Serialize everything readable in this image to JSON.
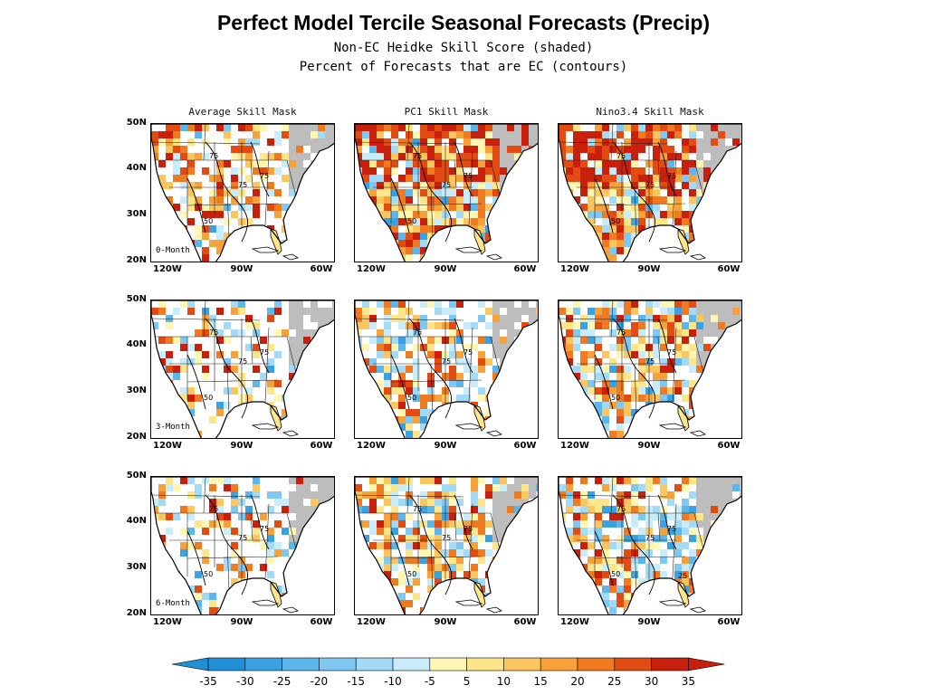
{
  "title": "Perfect Model Tercile Seasonal Forecasts (Precip)",
  "subtitle1": "Non-EC Heidke Skill Score (shaded)",
  "subtitle2": "Percent of Forecasts that are EC (contours)",
  "columns": [
    "Average Skill Mask",
    "PC1 Skill Mask",
    "Nino3.4 Skill Mask"
  ],
  "rows": [
    "0-Month",
    "3-Month",
    "6-Month"
  ],
  "lat_labels": [
    "50N",
    "40N",
    "30N",
    "20N"
  ],
  "lon_labels": [
    "120W",
    "90W",
    "60W"
  ],
  "contour_labels": [
    "75",
    "50",
    "25"
  ],
  "colorbar": {
    "labels": [
      "-35",
      "-30",
      "-25",
      "-20",
      "-15",
      "-10",
      "-5",
      "5",
      "10",
      "15",
      "20",
      "25",
      "30",
      "35"
    ],
    "colors": [
      "#1f8fd6",
      "#3aa2e2",
      "#5bb6ec",
      "#7ec8f2",
      "#a3daf6",
      "#c9ecfb",
      "#ffffff",
      "#fff6b3",
      "#fde58a",
      "#fbc55f",
      "#f7a13a",
      "#f07a1f",
      "#e24b12",
      "#c8200c"
    ]
  }
}
